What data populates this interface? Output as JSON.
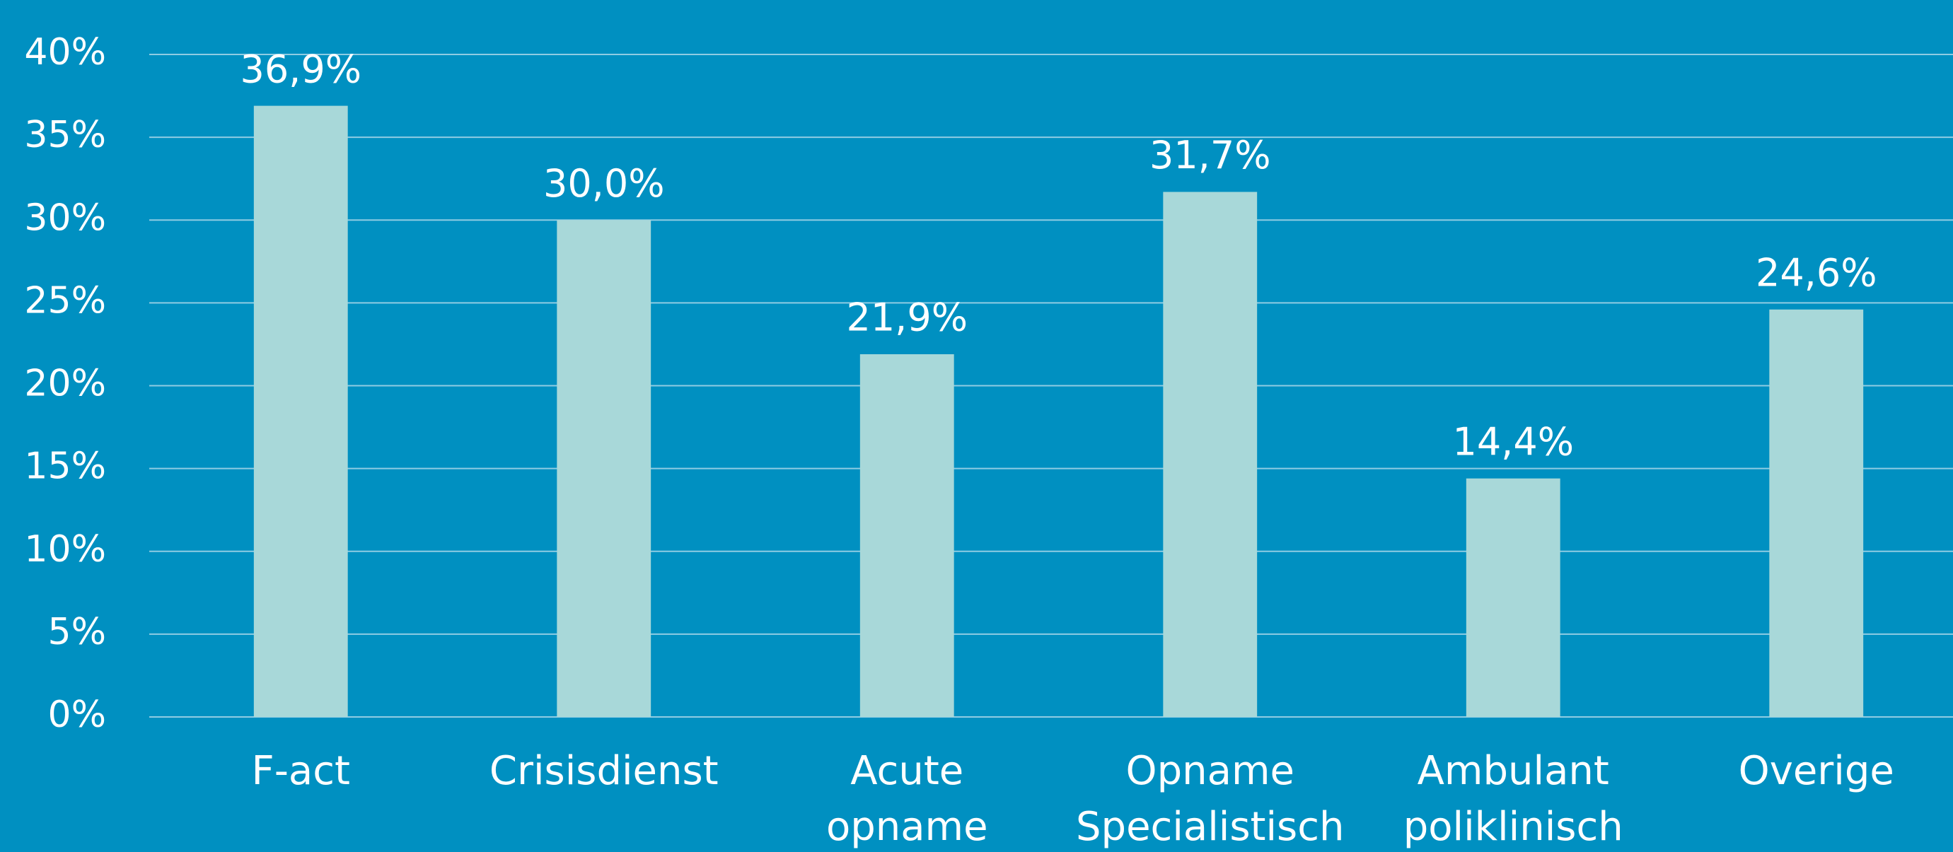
{
  "chart_data": {
    "type": "bar",
    "categories": [
      [
        "F-act"
      ],
      [
        "Crisisdienst"
      ],
      [
        "Acute",
        "opname"
      ],
      [
        "Opname",
        "Specialistisch"
      ],
      [
        "Ambulant",
        "poliklinisch"
      ],
      [
        "Overige"
      ]
    ],
    "values": [
      36.9,
      30.0,
      21.9,
      31.7,
      14.4,
      24.6
    ],
    "value_labels": [
      "36,9%",
      "30,0%",
      "21,9%",
      "31,7%",
      "14,4%",
      "24,6%"
    ],
    "color": "#a8d8d9",
    "ylim": [
      0,
      40
    ],
    "yticks": [
      {
        "value": 0,
        "label": "0%"
      },
      {
        "value": 5,
        "label": "5%"
      },
      {
        "value": 10,
        "label": "10%"
      },
      {
        "value": 15,
        "label": "15%"
      },
      {
        "value": 20,
        "label": "20%"
      },
      {
        "value": 25,
        "label": "25%"
      },
      {
        "value": 30,
        "label": "30%"
      },
      {
        "value": 35,
        "label": "35%"
      },
      {
        "value": 40,
        "label": "40%"
      }
    ],
    "grid": true
  }
}
